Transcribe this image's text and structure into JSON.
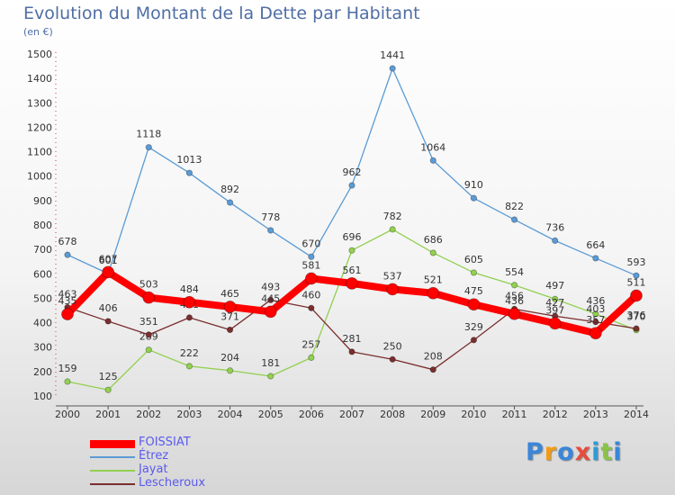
{
  "title": "Evolution du Montant de la Dette par Habitant",
  "subtitle": "(en €)",
  "chart_data": {
    "type": "line",
    "x": [
      "2000",
      "2001",
      "2002",
      "2003",
      "2004",
      "2005",
      "2006",
      "2007",
      "2008",
      "2009",
      "2010",
      "2011",
      "2012",
      "2013",
      "2014"
    ],
    "ylim": [
      100,
      1500
    ],
    "yticks": [
      100,
      200,
      300,
      400,
      500,
      600,
      700,
      800,
      900,
      1000,
      1100,
      1200,
      1300,
      1400,
      1500
    ],
    "grid": false,
    "legend_position": "bottom-left",
    "series": [
      {
        "name": "Étrez",
        "color": "#5b9bd5",
        "width": 1.3,
        "marker_r": 3.2,
        "values": [
          678,
          601,
          1118,
          1013,
          892,
          778,
          670,
          962,
          1441,
          1064,
          910,
          822,
          736,
          664,
          593
        ],
        "labels": [
          "678",
          "601",
          "1118",
          "1013",
          "892",
          "778",
          "670",
          "962",
          "1441",
          "1064",
          "910",
          "822",
          "736",
          "664",
          "593"
        ]
      },
      {
        "name": "Jayat",
        "color": "#92d050",
        "width": 1.3,
        "marker_r": 3.2,
        "values": [
          159,
          125,
          289,
          222,
          204,
          181,
          257,
          696,
          782,
          686,
          605,
          554,
          497,
          436,
          370
        ],
        "labels": [
          "159",
          "125",
          "289",
          "222",
          "204",
          "181",
          "257",
          "696",
          "782",
          "686",
          "605",
          "554",
          "497",
          "436",
          "370"
        ]
      },
      {
        "name": "Lescheroux",
        "color": "#7a2e2e",
        "width": 1.3,
        "marker_r": 3.2,
        "values": [
          463,
          406,
          351,
          421,
          371,
          493,
          460,
          281,
          250,
          208,
          329,
          456,
          427,
          403,
          376
        ],
        "labels": [
          "463",
          "406",
          "351",
          "421",
          "371",
          "493",
          "460",
          "281",
          "250",
          "208",
          "329",
          "456",
          "427",
          "403",
          "376"
        ]
      },
      {
        "name": "FOISSIAT",
        "color": "#ff0000",
        "width": 8,
        "marker_r": 6.5,
        "values": [
          435,
          607,
          503,
          484,
          465,
          445,
          581,
          561,
          537,
          521,
          475,
          436,
          397,
          357,
          511
        ],
        "labels": [
          "435",
          "607",
          "503",
          "484",
          "465",
          "445",
          "581",
          "561",
          "537",
          "521",
          "475",
          "436",
          "397",
          "357",
          "511"
        ]
      }
    ],
    "legend_order": [
      "FOISSIAT",
      "Étrez",
      "Jayat",
      "Lescheroux"
    ]
  },
  "logo": {
    "letters": [
      {
        "ch": "P",
        "color": "#3a86d8"
      },
      {
        "ch": "r",
        "color": "#f39c12"
      },
      {
        "ch": "o",
        "color": "#3a86d8"
      },
      {
        "ch": "x",
        "color": "#e74c3c"
      },
      {
        "ch": "i",
        "color": "#2e9bd6"
      },
      {
        "ch": "t",
        "color": "#8bc34a"
      },
      {
        "ch": "i",
        "color": "#3a86d8"
      }
    ]
  }
}
